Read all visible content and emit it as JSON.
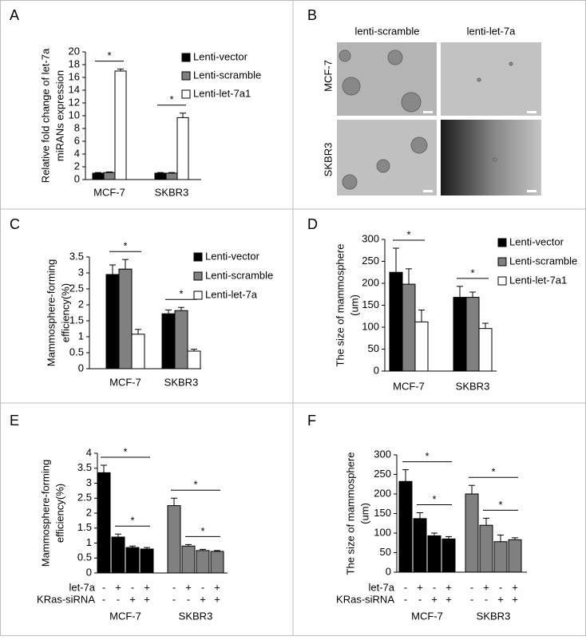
{
  "chart_data": [
    {
      "type": "bar",
      "panel": "A",
      "ylabel": [
        "Relative fold change of let-7a",
        "miRANs expression"
      ],
      "categories": [
        "MCF-7",
        "SKBR3"
      ],
      "series": [
        {
          "name": "Lenti-vector",
          "color": "#000000",
          "values": [
            1,
            1
          ],
          "errors": [
            0.1,
            0.1
          ]
        },
        {
          "name": "Lenti-scramble",
          "color": "#808080",
          "values": [
            1.1,
            1
          ],
          "errors": [
            0.1,
            0.1
          ]
        },
        {
          "name": "Lenti-let-7a1",
          "color": "#ffffff",
          "values": [
            17,
            9.7
          ],
          "errors": [
            0.3,
            0.7
          ]
        }
      ],
      "significance": [
        {
          "label": "*",
          "group": 0,
          "from": 0,
          "to": 2
        },
        {
          "label": "*",
          "group": 1,
          "from": 0,
          "to": 2
        }
      ],
      "ylim": [
        0,
        20
      ],
      "yticks": [
        0,
        2,
        4,
        6,
        8,
        10,
        12,
        14,
        16,
        18,
        20
      ]
    },
    {
      "type": "bar",
      "panel": "C",
      "ylabel": [
        "Mammosphere-forming",
        "efficiency(%)"
      ],
      "categories": [
        "MCF-7",
        "SKBR3"
      ],
      "series": [
        {
          "name": "Lenti-vector",
          "color": "#000000",
          "values": [
            2.95,
            1.72
          ],
          "errors": [
            0.3,
            0.12
          ]
        },
        {
          "name": "Lenti-scramble",
          "color": "#808080",
          "values": [
            3.12,
            1.82
          ],
          "errors": [
            0.3,
            0.1
          ]
        },
        {
          "name": "Lenti-let-7a",
          "color": "#ffffff",
          "values": [
            1.08,
            0.55
          ],
          "errors": [
            0.15,
            0.06
          ]
        }
      ],
      "significance": [
        {
          "label": "*",
          "group": 0,
          "from": 0,
          "to": 2
        },
        {
          "label": "*",
          "group": 1,
          "from": 0,
          "to": 2
        }
      ],
      "ylim": [
        0,
        3.5
      ],
      "yticks": [
        0,
        0.5,
        1,
        1.5,
        2,
        2.5,
        3,
        3.5
      ]
    },
    {
      "type": "bar",
      "panel": "D",
      "ylabel": [
        "The size of mammosphere",
        "(um)"
      ],
      "categories": [
        "MCF-7",
        "SKBR3"
      ],
      "series": [
        {
          "name": "Lenti-vector",
          "color": "#000000",
          "values": [
            225,
            168
          ],
          "errors": [
            55,
            25
          ]
        },
        {
          "name": "Lenti-scramble",
          "color": "#808080",
          "values": [
            198,
            168
          ],
          "errors": [
            35,
            12
          ]
        },
        {
          "name": "Lenti-let-7a1",
          "color": "#ffffff",
          "values": [
            112,
            97
          ],
          "errors": [
            27,
            12
          ]
        }
      ],
      "significance": [
        {
          "label": "*",
          "group": 0,
          "from": 0,
          "to": 2
        },
        {
          "label": "*",
          "group": 1,
          "from": 0,
          "to": 2
        }
      ],
      "ylim": [
        0,
        300
      ],
      "yticks": [
        0,
        50,
        100,
        150,
        200,
        250,
        300
      ]
    },
    {
      "type": "bar",
      "panel": "E",
      "ylabel": [
        "Mammosphere-forming",
        "efficiency(%)"
      ],
      "groups": [
        {
          "name": "MCF-7",
          "color": "#000000",
          "values": [
            3.35,
            1.2,
            0.85,
            0.8
          ],
          "errors": [
            0.25,
            0.1,
            0.05,
            0.05
          ]
        },
        {
          "name": "SKBR3",
          "color": "#808080",
          "values": [
            2.25,
            0.9,
            0.75,
            0.72
          ],
          "errors": [
            0.25,
            0.05,
            0.04,
            0.03
          ]
        }
      ],
      "conditions": [
        {
          "name": "let-7a",
          "signs": [
            "-",
            "+",
            "-",
            "+"
          ]
        },
        {
          "name": "KRas-siRNA",
          "signs": [
            "-",
            "-",
            "+",
            "+"
          ]
        }
      ],
      "significance": [
        {
          "label": "*",
          "group": 0,
          "from": 0,
          "to": 3
        },
        {
          "label": "*",
          "group": 0,
          "from": 1,
          "to": 3
        },
        {
          "label": "*",
          "group": 1,
          "from": 0,
          "to": 3
        },
        {
          "label": "*",
          "group": 1,
          "from": 1,
          "to": 3
        }
      ],
      "ylim": [
        0,
        4
      ],
      "yticks": [
        0,
        0.5,
        1,
        1.5,
        2,
        2.5,
        3,
        3.5,
        4
      ]
    },
    {
      "type": "bar",
      "panel": "F",
      "ylabel": [
        "The size of mammosphere",
        "(um)"
      ],
      "groups": [
        {
          "name": "MCF-7",
          "color": "#000000",
          "values": [
            232,
            137,
            93,
            85
          ],
          "errors": [
            30,
            15,
            7,
            6
          ]
        },
        {
          "name": "SKBR3",
          "color": "#808080",
          "values": [
            200,
            120,
            78,
            83
          ],
          "errors": [
            22,
            18,
            17,
            5
          ]
        }
      ],
      "conditions": [
        {
          "name": "let-7a",
          "signs": [
            "-",
            "+",
            "-",
            "+"
          ]
        },
        {
          "name": "KRas-siRNA",
          "signs": [
            "-",
            "-",
            "+",
            "+"
          ]
        }
      ],
      "significance": [
        {
          "label": "*",
          "group": 0,
          "from": 0,
          "to": 3
        },
        {
          "label": "*",
          "group": 0,
          "from": 1,
          "to": 3
        },
        {
          "label": "*",
          "group": 1,
          "from": 0,
          "to": 3
        },
        {
          "label": "*",
          "group": 1,
          "from": 1,
          "to": 3
        }
      ],
      "ylim": [
        0,
        300
      ],
      "yticks": [
        0,
        50,
        100,
        150,
        200,
        250,
        300
      ]
    }
  ],
  "image_panel": {
    "panel": "B",
    "columns": [
      "lenti-scramble",
      "lenti-let-7a"
    ],
    "rows": [
      "MCF-7",
      "SKBR3"
    ]
  }
}
